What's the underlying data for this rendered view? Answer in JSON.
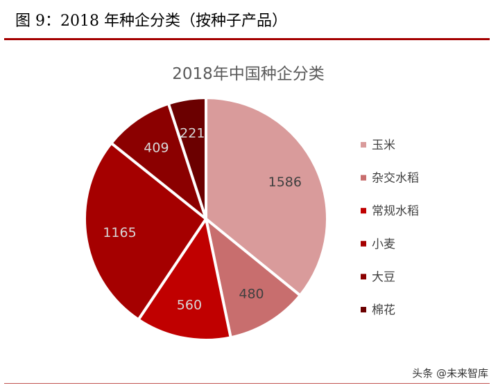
{
  "figure": {
    "title": "图 9：2018 年种企分类（按种子产品）"
  },
  "watermark": "头条 @未来智库",
  "chart_data": {
    "type": "pie",
    "title": "2018年中国种企分类",
    "categories": [
      "玉米",
      "杂交水稻",
      "常规水稻",
      "小麦",
      "大豆",
      "棉花"
    ],
    "values": [
      1586,
      480,
      560,
      1165,
      409,
      221
    ],
    "colors": [
      "#d99b9b",
      "#c86e6e",
      "#c00000",
      "#a50000",
      "#8b0000",
      "#6b0000"
    ],
    "legend_position": "right",
    "data_labels": true
  }
}
